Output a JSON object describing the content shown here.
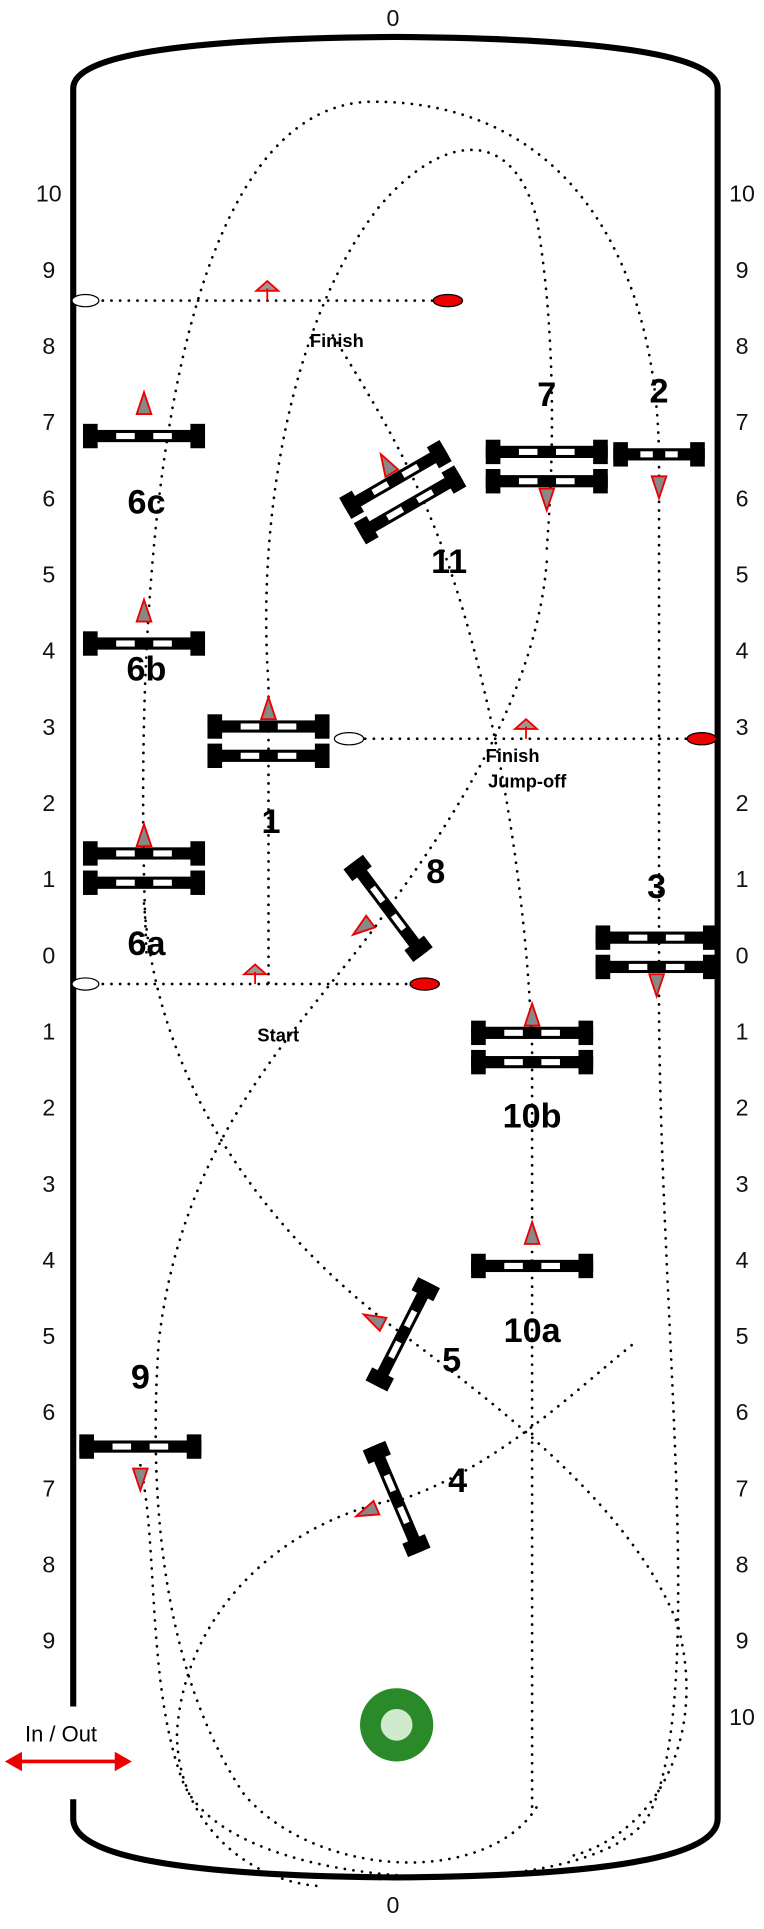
{
  "arena": {
    "top_label": "0",
    "bottom_label": "0",
    "left_scale": [
      "10",
      "9",
      "8",
      "7",
      "6",
      "5",
      "4",
      "3",
      "2",
      "1",
      "0",
      "1",
      "2",
      "3",
      "4",
      "5",
      "6",
      "7",
      "8",
      "9"
    ],
    "right_scale": [
      "10",
      "9",
      "8",
      "7",
      "6",
      "5",
      "4",
      "3",
      "2",
      "1",
      "0",
      "1",
      "2",
      "3",
      "4",
      "5",
      "6",
      "7",
      "8",
      "9",
      "10"
    ]
  },
  "fences": [
    {
      "label": "1"
    },
    {
      "label": "2"
    },
    {
      "label": "3"
    },
    {
      "label": "4"
    },
    {
      "label": "5"
    },
    {
      "label": "6a"
    },
    {
      "label": "6b"
    },
    {
      "label": "6c"
    },
    {
      "label": "7"
    },
    {
      "label": "8"
    },
    {
      "label": "9"
    },
    {
      "label": "10a"
    },
    {
      "label": "10b"
    },
    {
      "label": "11"
    }
  ],
  "annotations": {
    "finish": "Finish",
    "start": "Start",
    "finish_jumpoff": [
      "Finish",
      "Jump-off"
    ],
    "in_out": "In / Out"
  }
}
